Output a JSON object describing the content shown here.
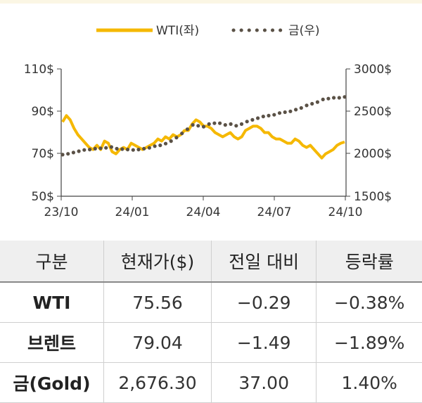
{
  "chart_data": {
    "type": "line",
    "legend": {
      "position": "top-center",
      "entries": [
        "WTI(좌)",
        "금(우)"
      ]
    },
    "x_ticks": [
      "23/10",
      "24/01",
      "24/04",
      "24/07",
      "24/10"
    ],
    "y_left": {
      "ticks": [
        "110$",
        "90$",
        "70$",
        "50$"
      ],
      "range": [
        50,
        110
      ]
    },
    "y_right": {
      "ticks": [
        "3000$",
        "2500$",
        "2000$",
        "1500$"
      ],
      "range": [
        1500,
        3000
      ]
    },
    "series": [
      {
        "name": "WTI(좌)",
        "axis": "left",
        "color": "#f5b800",
        "style": "solid",
        "values": [
          85,
          88,
          86,
          82,
          79,
          77,
          75,
          73,
          72,
          74,
          72,
          76,
          75,
          71,
          70,
          72,
          73,
          72,
          75,
          74,
          73,
          72,
          73,
          74,
          75,
          77,
          76,
          78,
          77,
          79,
          78,
          79,
          81,
          81,
          84,
          86,
          85,
          83,
          83,
          82,
          80,
          79,
          78,
          79,
          80,
          78,
          77,
          78,
          81,
          82,
          83,
          83,
          82,
          80,
          80,
          78,
          77,
          77,
          76,
          75,
          75,
          77,
          76,
          74,
          73,
          74,
          72,
          70,
          68,
          70,
          71,
          72,
          74,
          75,
          75.56
        ]
      },
      {
        "name": "금(우)",
        "axis": "right",
        "color": "#5a5146",
        "style": "dotted",
        "values": [
          1990,
          2000,
          2015,
          2030,
          2045,
          2050,
          2060,
          2065,
          2070,
          2080,
          2060,
          2055,
          2050,
          2045,
          2050,
          2060,
          2070,
          2090,
          2100,
          2120,
          2150,
          2190,
          2240,
          2290,
          2340,
          2330,
          2320,
          2350,
          2360,
          2360,
          2340,
          2350,
          2330,
          2350,
          2380,
          2400,
          2420,
          2440,
          2450,
          2460,
          2480,
          2490,
          2500,
          2520,
          2540,
          2570,
          2590,
          2610,
          2640,
          2650,
          2660,
          2660,
          2670
        ]
      }
    ]
  },
  "table": {
    "headers": [
      "구분",
      "현재가($)",
      "전일 대비",
      "등락률"
    ],
    "rows": [
      [
        "WTI",
        "75.56",
        "−0.29",
        "−0.38%"
      ],
      [
        "브렌트",
        "79.04",
        "−1.49",
        "−1.89%"
      ],
      [
        "금(Gold)",
        "2,676.30",
        "37.00",
        "1.40%"
      ]
    ]
  }
}
